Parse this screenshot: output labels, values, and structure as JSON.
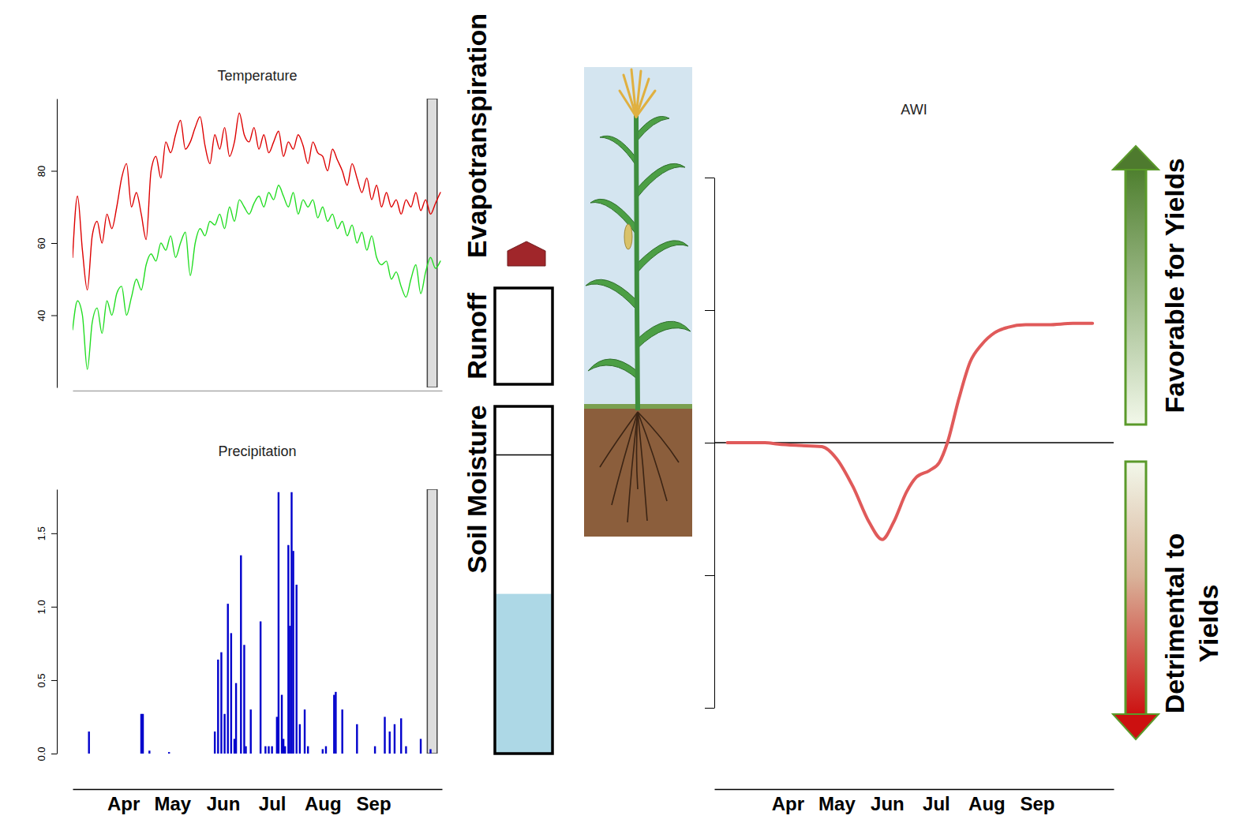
{
  "chart_data": [
    {
      "type": "line",
      "title": "Temperature",
      "x": [
        74,
        77,
        80,
        83,
        86,
        89,
        92,
        95,
        98,
        101,
        104,
        107,
        110,
        113,
        116,
        119,
        122,
        125,
        128,
        131,
        134,
        137,
        140,
        143,
        146,
        149,
        152,
        155,
        158,
        161,
        164,
        167,
        170,
        173,
        176,
        179,
        182,
        185,
        188,
        191,
        194,
        197,
        200,
        203,
        206,
        209,
        212,
        215,
        218,
        221,
        224,
        227,
        230,
        233,
        236,
        239,
        242,
        245,
        248,
        251,
        254,
        257,
        260,
        263,
        266,
        269,
        272,
        275,
        278,
        281,
        284,
        287,
        290,
        293,
        296,
        299
      ],
      "series": [
        {
          "color": "#dd0000",
          "values": [
            56,
            73,
            58,
            47,
            62,
            66,
            60,
            68,
            64,
            70,
            78,
            82,
            70,
            74,
            68,
            61,
            80,
            84,
            78,
            88,
            85,
            90,
            94,
            86,
            88,
            92,
            95,
            87,
            82,
            90,
            86,
            92,
            84,
            88,
            96,
            90,
            88,
            92,
            86,
            90,
            85,
            88,
            91,
            84,
            88,
            86,
            90,
            87,
            82,
            88,
            85,
            84,
            80,
            86,
            83,
            80,
            76,
            82,
            78,
            74,
            78,
            72,
            76,
            70,
            74,
            70,
            72,
            68,
            72,
            70,
            74,
            69,
            72,
            68,
            71,
            74
          ]
        },
        {
          "color": "#22dd22",
          "values": [
            36,
            44,
            40,
            25,
            38,
            42,
            35,
            44,
            40,
            46,
            48,
            40,
            45,
            50,
            47,
            54,
            57,
            55,
            60,
            58,
            62,
            56,
            60,
            63,
            51,
            60,
            64,
            62,
            66,
            65,
            68,
            64,
            70,
            66,
            72,
            70,
            68,
            71,
            73,
            70,
            74,
            72,
            76,
            73,
            70,
            74,
            68,
            72,
            70,
            72,
            67,
            70,
            66,
            68,
            64,
            66,
            62,
            65,
            60,
            63,
            58,
            62,
            56,
            54,
            55,
            50,
            52,
            48,
            45,
            50,
            54,
            46,
            52,
            56,
            53,
            55
          ]
        }
      ],
      "xlim": [
        74,
        300
      ],
      "ylim": [
        20,
        100
      ],
      "yticks": [
        40,
        60,
        80
      ],
      "tick_labels": "y",
      "highlight_x": [
        291,
        297
      ]
    },
    {
      "type": "bar",
      "title": "Precipitation",
      "x": [
        84,
        116,
        117,
        121,
        133,
        161,
        163,
        165,
        167,
        169,
        171,
        173,
        174,
        177,
        179,
        180,
        183,
        189,
        192,
        194,
        196,
        199,
        200,
        202,
        203,
        204,
        206,
        207,
        208,
        209,
        211,
        213,
        216,
        218,
        227,
        229,
        234,
        235,
        239,
        248,
        259,
        265,
        268,
        271,
        275,
        278,
        287,
        293
      ],
      "values": [
        0.15,
        0.27,
        0.27,
        0.02,
        0.01,
        0.15,
        0.64,
        0.69,
        0.27,
        1.02,
        0.82,
        0.1,
        0.48,
        1.35,
        0.74,
        0.05,
        0.3,
        0.9,
        0.05,
        0.05,
        0.05,
        0.25,
        1.78,
        0.4,
        0.1,
        0.05,
        1.42,
        0.87,
        1.78,
        1.38,
        1.15,
        0.2,
        0.3,
        0.05,
        0.03,
        0.05,
        0.4,
        0.42,
        0.3,
        0.2,
        0.05,
        0.25,
        0.15,
        0.2,
        0.24,
        0.05,
        0.1,
        0.03
      ],
      "color": "#0000cc",
      "xlim": [
        74,
        300
      ],
      "ylim": [
        0,
        1.8
      ],
      "yticks": [
        {
          "value": 0,
          "label": "0.0"
        },
        0.5,
        {
          "value": 1,
          "label": "1.0"
        },
        1.5
      ],
      "xticks": [
        {
          "value": 105,
          "label": "Apr"
        },
        {
          "value": 135,
          "label": "May"
        },
        {
          "value": 166,
          "label": "Jun"
        },
        {
          "value": 196,
          "label": "Jul"
        },
        {
          "value": 227,
          "label": "Aug"
        },
        {
          "value": 258,
          "label": "Sep"
        }
      ],
      "highlight_x": [
        291,
        297
      ]
    },
    {
      "type": "line",
      "title": "AWI",
      "x": [
        68,
        75,
        91,
        99,
        110,
        126,
        135,
        145,
        155,
        163,
        170,
        178,
        184,
        192,
        198,
        203,
        210,
        217,
        224,
        232,
        240,
        251,
        265,
        280,
        292
      ],
      "values": [
        0,
        0,
        0,
        -0.01,
        -0.02,
        -0.03,
        -0.12,
        -0.33,
        -0.6,
        -0.73,
        -0.6,
        -0.37,
        -0.26,
        -0.21,
        -0.15,
        0,
        0.33,
        0.61,
        0.74,
        0.83,
        0.87,
        0.89,
        0.89,
        0.9,
        0.9
      ],
      "color": "#e05a5a",
      "xlim": [
        60,
        305
      ],
      "ylim": [
        -2,
        2
      ],
      "yticks": [
        -2,
        -1,
        0,
        1,
        2
      ],
      "xticks": [
        {
          "value": 105,
          "label": "Apr"
        },
        {
          "value": 135,
          "label": "May"
        },
        {
          "value": 166,
          "label": "Jun"
        },
        {
          "value": 196,
          "label": "Jul"
        },
        {
          "value": 227,
          "label": "Aug"
        },
        {
          "value": 258,
          "label": "Sep"
        }
      ],
      "tick_labels": "x",
      "reference_line": 0
    }
  ],
  "diagram": {
    "evapotranspiration": {
      "label": "Evapotranspiration"
    },
    "runoff": {
      "label": "Runoff",
      "fill": 0
    },
    "soil_moisture": {
      "label": "Soil Moisture",
      "fill": 0.46,
      "capacity": 0.86
    },
    "yield_scale": {
      "favorable": "Favorable for Yields",
      "detrimental": "Detrimental to Yields"
    }
  }
}
